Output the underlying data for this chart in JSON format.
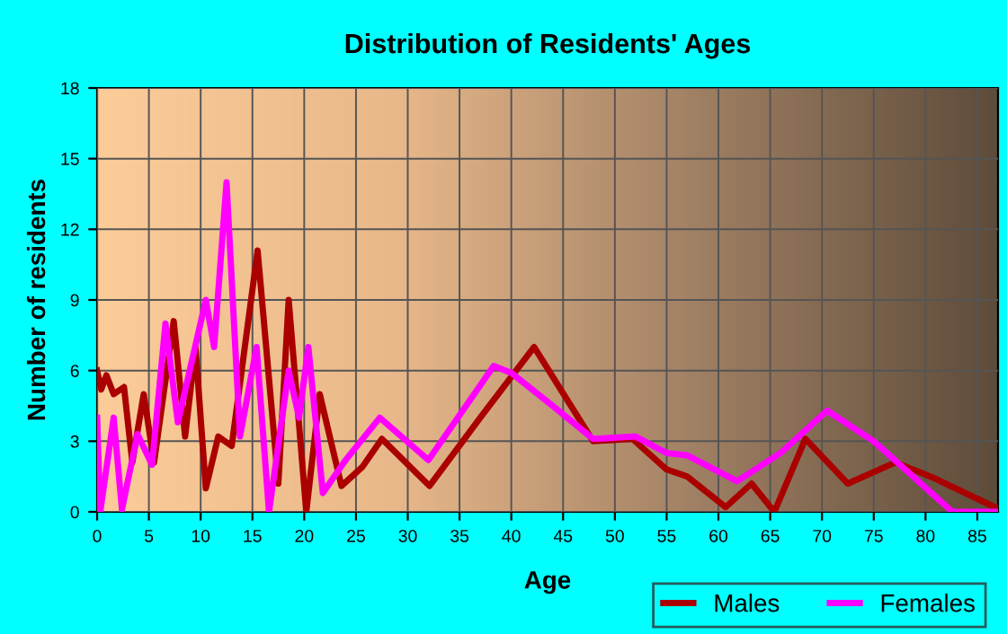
{
  "chart_data": {
    "type": "line",
    "title": "Distribution of Residents' Ages",
    "xlabel": "Age",
    "ylabel": "Number of residents",
    "xlim": [
      0,
      87
    ],
    "xticks": [
      0,
      5,
      10,
      15,
      20,
      25,
      30,
      35,
      40,
      45,
      50,
      55,
      60,
      65,
      70,
      75,
      80,
      85
    ],
    "ylim": [
      0,
      18
    ],
    "yticks": [
      0,
      3,
      6,
      9,
      12,
      15,
      18
    ],
    "grid": true,
    "legend": "bottom right",
    "marker": "none",
    "line_style": "solid",
    "series": [
      {
        "name": "Males",
        "color": "#aa0000",
        "x": [
          0,
          0.4,
          0.9,
          1.6,
          2.6,
          3.4,
          4.5,
          5.5,
          7.4,
          8.5,
          9.5,
          10.5,
          11.7,
          13,
          15.5,
          17.5,
          18.5,
          20.2,
          21.5,
          23.6,
          25.6,
          27.5,
          32.1,
          37,
          42.2,
          47.9,
          51.7,
          55,
          57,
          60.7,
          63.2,
          65.4,
          68.4,
          72.5,
          77.1,
          81,
          86.7
        ],
        "values": [
          6,
          5.2,
          5.8,
          5,
          5.3,
          2.1,
          5,
          2.1,
          8.1,
          3.2,
          7,
          1,
          3.2,
          2.8,
          11.1,
          1.2,
          9,
          0,
          5,
          1.1,
          1.9,
          3.1,
          1.1,
          4,
          7,
          3,
          3.1,
          1.8,
          1.5,
          0.2,
          1.2,
          0,
          3.1,
          1.2,
          2.1,
          1.4,
          0.2
        ]
      },
      {
        "name": "Females",
        "color": "#ff00ff",
        "x": [
          0,
          0.3,
          1.6,
          2.4,
          3.9,
          5.3,
          6.6,
          7.8,
          10.5,
          11.3,
          12.5,
          13.8,
          15.4,
          16.6,
          18.5,
          19.5,
          20.4,
          21.8,
          24,
          27.3,
          32,
          38.3,
          40,
          44,
          47.9,
          52,
          55,
          57,
          61.8,
          66,
          70.5,
          75,
          82.6,
          87
        ],
        "values": [
          4,
          0,
          4,
          0.1,
          3.3,
          2,
          8,
          3.8,
          9,
          7,
          14,
          3.2,
          7,
          0,
          6,
          4,
          7,
          0.8,
          2.2,
          4,
          2.2,
          6.2,
          5.9,
          4.5,
          3.1,
          3.2,
          2.5,
          2.4,
          1.3,
          2.5,
          4.3,
          3,
          0,
          0
        ]
      }
    ]
  }
}
